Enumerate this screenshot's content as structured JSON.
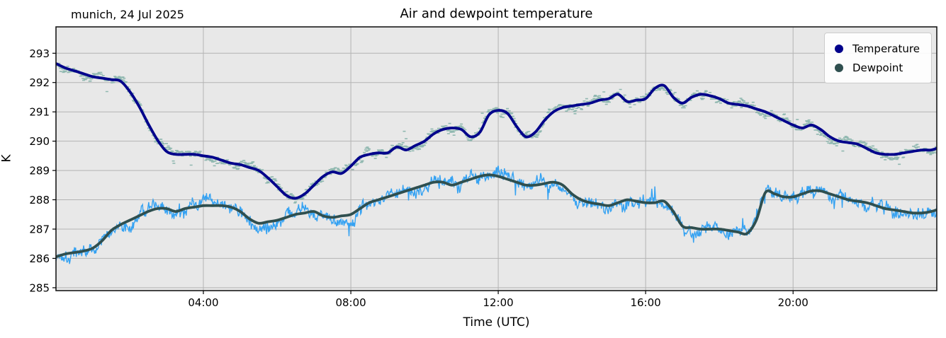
{
  "chart_data": {
    "type": "line",
    "title": "Air and dewpoint temperature",
    "annotation": "munich, 24 Jul 2025",
    "xlabel": "Time (UTC)",
    "ylabel": "K",
    "xlim_hours": [
      0,
      23.9
    ],
    "ylim": [
      284.9,
      293.9
    ],
    "grid": true,
    "legend_position": "upper right",
    "sample_step_hours": 0.25,
    "xticks": [
      {
        "hour": 4,
        "label": "04:00"
      },
      {
        "hour": 8,
        "label": "08:00"
      },
      {
        "hour": 12,
        "label": "12:00"
      },
      {
        "hour": 16,
        "label": "16:00"
      },
      {
        "hour": 20,
        "label": "20:00"
      }
    ],
    "yticks": [
      285,
      286,
      287,
      288,
      289,
      290,
      291,
      292,
      293
    ],
    "style": {
      "plot_background": "#e8e8e8",
      "grid_color": "#b3b3b3",
      "frame_color": "#1a1a1a",
      "tick_label_color": "#000000"
    },
    "series": [
      {
        "name": "Temperature",
        "color": "#00008b",
        "raw_color": "#90b8b0",
        "raw_style": "dashes",
        "raw_noise_k": 0.22,
        "values": [
          292.65,
          292.5,
          292.4,
          292.3,
          292.2,
          292.15,
          292.1,
          292.05,
          291.7,
          291.2,
          290.6,
          290.05,
          289.65,
          289.55,
          289.55,
          289.55,
          289.5,
          289.45,
          289.35,
          289.25,
          289.2,
          289.1,
          289.0,
          288.75,
          288.45,
          288.15,
          288.05,
          288.2,
          288.5,
          288.8,
          288.95,
          288.9,
          289.15,
          289.45,
          289.55,
          289.6,
          289.6,
          289.8,
          289.7,
          289.85,
          290.0,
          290.25,
          290.4,
          290.45,
          290.4,
          290.15,
          290.3,
          290.9,
          291.05,
          290.95,
          290.5,
          290.15,
          290.3,
          290.7,
          291.0,
          291.15,
          291.2,
          291.25,
          291.3,
          291.4,
          291.45,
          291.6,
          291.35,
          291.4,
          291.45,
          291.8,
          291.9,
          291.5,
          291.3,
          291.5,
          291.6,
          291.55,
          291.45,
          291.3,
          291.25,
          291.2,
          291.1,
          291.0,
          290.85,
          290.7,
          290.55,
          290.45,
          290.55,
          290.4,
          290.15,
          290.0,
          289.95,
          289.9,
          289.75,
          289.6,
          289.55,
          289.55,
          289.6,
          289.65,
          289.7,
          289.7,
          289.8
        ]
      },
      {
        "name": "Dewpoint",
        "color": "#2f4f4f",
        "raw_color": "#35a2f2",
        "raw_style": "line",
        "raw_noise_k": 0.3,
        "values": [
          286.05,
          286.15,
          286.2,
          286.25,
          286.35,
          286.6,
          286.95,
          287.15,
          287.3,
          287.45,
          287.6,
          287.7,
          287.7,
          287.6,
          287.7,
          287.75,
          287.8,
          287.8,
          287.8,
          287.75,
          287.6,
          287.35,
          287.2,
          287.25,
          287.3,
          287.4,
          287.5,
          287.55,
          287.6,
          287.45,
          287.4,
          287.45,
          287.5,
          287.7,
          287.9,
          288.0,
          288.1,
          288.2,
          288.3,
          288.4,
          288.5,
          288.6,
          288.6,
          288.5,
          288.6,
          288.7,
          288.8,
          288.85,
          288.8,
          288.7,
          288.6,
          288.5,
          288.5,
          288.55,
          288.6,
          288.5,
          288.2,
          288.0,
          287.9,
          287.85,
          287.8,
          287.9,
          288.0,
          287.95,
          287.9,
          287.9,
          287.95,
          287.6,
          287.1,
          287.05,
          287.0,
          287.0,
          287.0,
          286.95,
          286.9,
          286.85,
          287.3,
          288.25,
          288.2,
          288.1,
          288.1,
          288.2,
          288.3,
          288.3,
          288.2,
          288.1,
          288.0,
          287.95,
          287.9,
          287.8,
          287.7,
          287.65,
          287.6,
          287.55,
          287.55,
          287.6,
          287.7
        ]
      }
    ]
  }
}
